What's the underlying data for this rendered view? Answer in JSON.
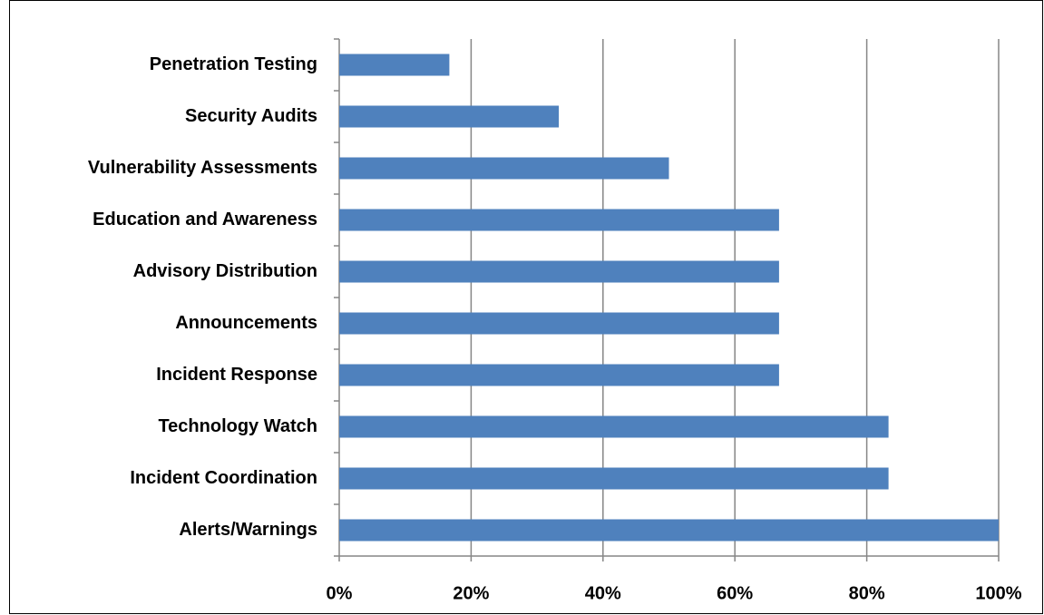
{
  "chart_data": {
    "type": "bar",
    "orientation": "horizontal",
    "categories": [
      "Penetration Testing",
      "Security Audits",
      "Vulnerability Assessments",
      "Education and Awareness",
      "Advisory Distribution",
      "Announcements",
      "Incident Response",
      "Technology Watch",
      "Incident Coordination",
      "Alerts/Warnings"
    ],
    "values": [
      16.7,
      33.3,
      50,
      66.7,
      66.7,
      66.7,
      66.7,
      83.3,
      83.3,
      100
    ],
    "color": "#4f81bd",
    "xlim": [
      0,
      100
    ],
    "xticks": [
      {
        "value": 0,
        "label": "0%"
      },
      {
        "value": 20,
        "label": "20%"
      },
      {
        "value": 40,
        "label": "40%"
      },
      {
        "value": 60,
        "label": "60%"
      },
      {
        "value": 80,
        "label": "80%"
      },
      {
        "value": 100,
        "label": "100%"
      }
    ],
    "grid": true
  }
}
